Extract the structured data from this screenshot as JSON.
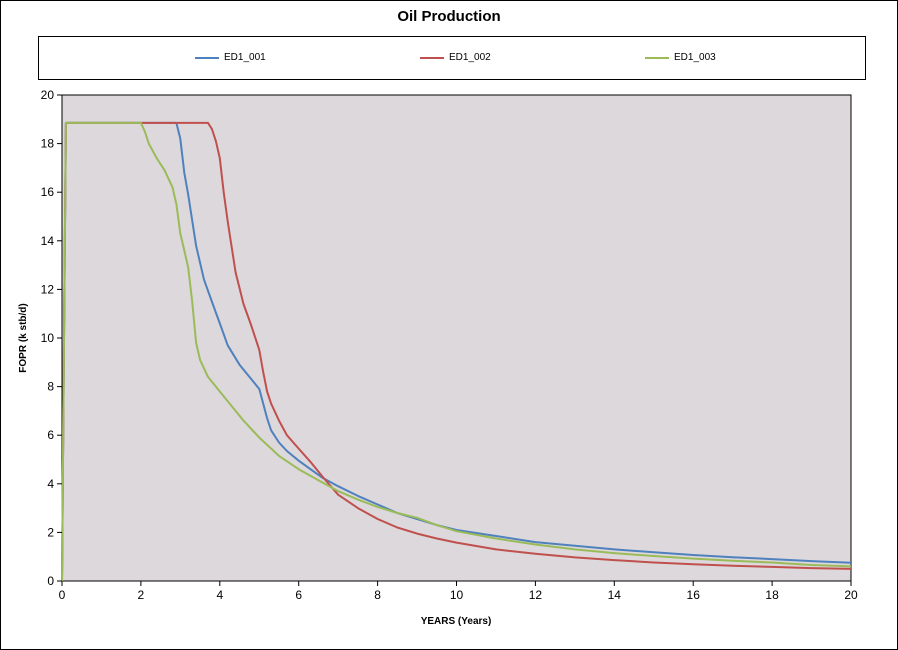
{
  "chart_data": {
    "type": "line",
    "title": "Oil Production",
    "xlabel": "YEARS (Years)",
    "ylabel": "FOPR (k stb/d)",
    "xlim": [
      0,
      20
    ],
    "ylim": [
      0,
      20
    ],
    "xticks": [
      0,
      2,
      4,
      6,
      8,
      10,
      12,
      14,
      16,
      18,
      20
    ],
    "yticks": [
      0,
      2,
      4,
      6,
      8,
      10,
      12,
      14,
      16,
      18,
      20
    ],
    "grid": false,
    "legend": "top",
    "background": "#dcd8dc",
    "series": [
      {
        "name": "ED1_001",
        "color": "#4f81bd",
        "x": [
          0,
          0.05,
          0.1,
          2.9,
          3.0,
          3.1,
          3.2,
          3.4,
          3.6,
          3.8,
          4.0,
          4.2,
          4.5,
          4.8,
          5.0,
          5.2,
          5.3,
          5.5,
          5.7,
          6.0,
          6.3,
          6.6,
          7.0,
          7.5,
          8.0,
          8.5,
          9.0,
          9.5,
          10,
          11,
          12,
          13,
          14,
          15,
          16,
          17,
          18,
          19,
          20
        ],
        "y": [
          0,
          10,
          18.85,
          18.85,
          18.2,
          16.8,
          15.9,
          13.8,
          12.4,
          11.5,
          10.6,
          9.7,
          8.9,
          8.3,
          7.9,
          6.7,
          6.2,
          5.7,
          5.35,
          4.95,
          4.6,
          4.25,
          3.9,
          3.5,
          3.15,
          2.8,
          2.55,
          2.3,
          2.1,
          1.85,
          1.6,
          1.45,
          1.3,
          1.18,
          1.07,
          0.98,
          0.9,
          0.82,
          0.75
        ]
      },
      {
        "name": "ED1_002",
        "color": "#c0504d",
        "x": [
          0,
          0.05,
          0.1,
          3.7,
          3.8,
          3.9,
          4.0,
          4.1,
          4.2,
          4.4,
          4.6,
          4.8,
          5.0,
          5.1,
          5.2,
          5.3,
          5.5,
          5.7,
          6.0,
          6.3,
          6.6,
          7.0,
          7.5,
          8.0,
          8.5,
          9.0,
          9.5,
          10,
          11,
          12,
          13,
          14,
          15,
          16,
          17,
          18,
          19,
          20
        ],
        "y": [
          0,
          10,
          18.85,
          18.85,
          18.6,
          18.1,
          17.4,
          16.0,
          14.8,
          12.7,
          11.4,
          10.5,
          9.5,
          8.6,
          7.8,
          7.3,
          6.6,
          6.0,
          5.45,
          4.9,
          4.3,
          3.55,
          3.0,
          2.55,
          2.2,
          1.95,
          1.75,
          1.58,
          1.3,
          1.12,
          0.97,
          0.86,
          0.76,
          0.69,
          0.63,
          0.58,
          0.53,
          0.5
        ]
      },
      {
        "name": "ED1_003",
        "color": "#9bbb59",
        "x": [
          0,
          0.05,
          0.1,
          2.0,
          2.1,
          2.2,
          2.4,
          2.6,
          2.8,
          2.9,
          3.0,
          3.1,
          3.2,
          3.3,
          3.4,
          3.5,
          3.7,
          4.0,
          4.3,
          4.6,
          5.0,
          5.5,
          6.0,
          6.5,
          7.0,
          7.5,
          8.0,
          8.5,
          9.0,
          9.5,
          10,
          11,
          12,
          13,
          14,
          15,
          16,
          17,
          18,
          19,
          20
        ],
        "y": [
          0,
          10,
          18.85,
          18.85,
          18.5,
          18.0,
          17.4,
          16.9,
          16.2,
          15.5,
          14.3,
          13.6,
          12.9,
          11.5,
          9.8,
          9.1,
          8.4,
          7.8,
          7.2,
          6.6,
          5.9,
          5.15,
          4.6,
          4.15,
          3.7,
          3.35,
          3.05,
          2.8,
          2.6,
          2.3,
          2.05,
          1.75,
          1.5,
          1.3,
          1.15,
          1.03,
          0.92,
          0.83,
          0.76,
          0.66,
          0.6
        ]
      }
    ]
  }
}
